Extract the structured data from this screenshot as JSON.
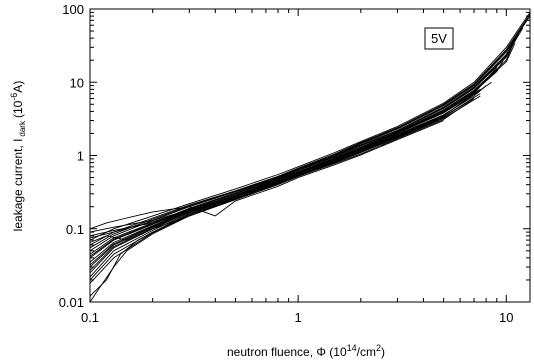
{
  "chart_data": {
    "type": "line",
    "title": "",
    "xlabel": "neutron fluence, Φ (10",
    "xlabel_sup": "14",
    "xlabel_mid": "/cm",
    "xlabel_sup2": "2",
    "xlabel_end": ")",
    "ylabel": "leakage current, I",
    "ylabel_sub": "dark",
    "ylabel_mid": "(10",
    "ylabel_sup": "-6",
    "ylabel_end": "A)",
    "xscale": "log",
    "yscale": "log",
    "xlim": [
      0.1,
      13
    ],
    "ylim": [
      0.01,
      100
    ],
    "x_ticks": [
      {
        "value": 0.1,
        "label": "0.1"
      },
      {
        "value": 1,
        "label": "1"
      },
      {
        "value": 10,
        "label": "10"
      }
    ],
    "y_ticks": [
      {
        "value": 0.01,
        "label": "0.01"
      },
      {
        "value": 0.1,
        "label": "0.1"
      },
      {
        "value": 1,
        "label": "1"
      },
      {
        "value": 10,
        "label": "10"
      },
      {
        "value": 100,
        "label": "100"
      }
    ],
    "grid": false,
    "annotation": {
      "text": "5V",
      "boxed": true,
      "position": "top-right"
    },
    "series_note": "approximately 30 individual device curves rising from ~0.02-0.1 at Φ=0.1 to ~0.5 at Φ=1 and ~8-90 near Φ=7-13",
    "series": [
      {
        "x": [
          0.1,
          0.13,
          0.2,
          0.3,
          0.5,
          0.8,
          1,
          1.5,
          2,
          3,
          5,
          7,
          10,
          13
        ],
        "y": [
          0.07,
          0.1,
          0.15,
          0.22,
          0.35,
          0.55,
          0.7,
          1.1,
          1.55,
          2.5,
          5.2,
          10,
          30,
          90
        ]
      },
      {
        "x": [
          0.1,
          0.13,
          0.2,
          0.3,
          0.5,
          0.8,
          1,
          1.5,
          2,
          3,
          5,
          7,
          10,
          13
        ],
        "y": [
          0.06,
          0.09,
          0.14,
          0.21,
          0.33,
          0.52,
          0.67,
          1.05,
          1.5,
          2.4,
          5,
          9.5,
          28,
          85
        ]
      },
      {
        "x": [
          0.1,
          0.13,
          0.2,
          0.3,
          0.5,
          0.8,
          1,
          1.5,
          2,
          3,
          5,
          7,
          10,
          12.5
        ],
        "y": [
          0.05,
          0.08,
          0.13,
          0.2,
          0.32,
          0.5,
          0.65,
          1,
          1.45,
          2.3,
          4.8,
          9,
          26,
          70
        ]
      },
      {
        "x": [
          0.1,
          0.13,
          0.2,
          0.3,
          0.5,
          0.8,
          1,
          1.5,
          2,
          3,
          5,
          7,
          10,
          12
        ],
        "y": [
          0.045,
          0.075,
          0.12,
          0.19,
          0.31,
          0.49,
          0.63,
          0.98,
          1.4,
          2.2,
          4.6,
          8.6,
          24,
          60
        ]
      },
      {
        "x": [
          0.1,
          0.13,
          0.2,
          0.3,
          0.5,
          0.8,
          1,
          1.5,
          2,
          3,
          5,
          7,
          10,
          11.5
        ],
        "y": [
          0.04,
          0.07,
          0.115,
          0.185,
          0.3,
          0.48,
          0.62,
          0.96,
          1.35,
          2.15,
          4.4,
          8.2,
          22,
          48
        ]
      },
      {
        "x": [
          0.1,
          0.13,
          0.2,
          0.3,
          0.5,
          0.8,
          1,
          1.5,
          2,
          3,
          5,
          7,
          10,
          11
        ],
        "y": [
          0.035,
          0.065,
          0.11,
          0.18,
          0.29,
          0.47,
          0.6,
          0.93,
          1.3,
          2.1,
          4.2,
          7.8,
          20,
          38
        ]
      },
      {
        "x": [
          0.1,
          0.13,
          0.2,
          0.3,
          0.5,
          0.8,
          1,
          1.5,
          2,
          3,
          5,
          7,
          9,
          10.5
        ],
        "y": [
          0.03,
          0.06,
          0.105,
          0.175,
          0.285,
          0.46,
          0.59,
          0.91,
          1.28,
          2.05,
          4,
          7.4,
          14,
          30
        ]
      },
      {
        "x": [
          0.1,
          0.13,
          0.2,
          0.3,
          0.5,
          0.8,
          1,
          1.5,
          2,
          3,
          5,
          7,
          9
        ],
        "y": [
          0.025,
          0.055,
          0.1,
          0.17,
          0.28,
          0.45,
          0.58,
          0.89,
          1.25,
          2,
          3.8,
          7,
          16
        ]
      },
      {
        "x": [
          0.1,
          0.13,
          0.2,
          0.3,
          0.5,
          0.8,
          1,
          1.5,
          2,
          3,
          5,
          7,
          8
        ],
        "y": [
          0.022,
          0.05,
          0.095,
          0.165,
          0.27,
          0.44,
          0.57,
          0.87,
          1.22,
          1.95,
          3.6,
          6.5,
          9
        ]
      },
      {
        "x": [
          0.1,
          0.13,
          0.2,
          0.3,
          0.5,
          0.8,
          1,
          1.5,
          2,
          3,
          5,
          7.5
        ],
        "y": [
          0.02,
          0.045,
          0.09,
          0.16,
          0.265,
          0.43,
          0.56,
          0.85,
          1.2,
          1.9,
          3.5,
          8
        ]
      },
      {
        "x": [
          0.1,
          0.13,
          0.2,
          0.3,
          0.5,
          0.8,
          1,
          1.5,
          2,
          3,
          5,
          7.5
        ],
        "y": [
          0.018,
          0.04,
          0.088,
          0.155,
          0.26,
          0.42,
          0.55,
          0.83,
          1.15,
          1.85,
          3.4,
          7
        ]
      },
      {
        "x": [
          0.1,
          0.13,
          0.2,
          0.3,
          0.5,
          0.8,
          1,
          1.5,
          2,
          3,
          5,
          7.5
        ],
        "y": [
          0.08,
          0.095,
          0.12,
          0.17,
          0.27,
          0.42,
          0.53,
          0.8,
          1.1,
          1.75,
          3.2,
          6.5
        ]
      },
      {
        "x": [
          0.1,
          0.12,
          0.15,
          0.2,
          0.3,
          0.5,
          0.8,
          1,
          1.5,
          2,
          3,
          5,
          7
        ],
        "y": [
          0.065,
          0.08,
          0.07,
          0.1,
          0.15,
          0.25,
          0.4,
          0.52,
          0.78,
          1.05,
          1.7,
          3.1,
          6
        ]
      },
      {
        "x": [
          0.1,
          0.12,
          0.15,
          0.2,
          0.3,
          0.4,
          0.5,
          0.8,
          1,
          1.5,
          2,
          3,
          5
        ],
        "y": [
          0.1,
          0.12,
          0.14,
          0.17,
          0.2,
          0.15,
          0.24,
          0.38,
          0.5,
          0.75,
          1.02,
          1.65,
          3
        ]
      },
      {
        "x": [
          0.1,
          0.12,
          0.14,
          0.17,
          0.2,
          0.3,
          0.5,
          0.8,
          1,
          1.5,
          2,
          3,
          5
        ],
        "y": [
          0.012,
          0.02,
          0.045,
          0.07,
          0.09,
          0.15,
          0.25,
          0.4,
          0.52,
          0.8,
          1.1,
          1.8,
          3.3
        ]
      },
      {
        "x": [
          0.1,
          0.11,
          0.13,
          0.15,
          0.2,
          0.3,
          0.5,
          0.8,
          1,
          1.5,
          2,
          3,
          5
        ],
        "y": [
          0.01,
          0.015,
          0.03,
          0.05,
          0.085,
          0.15,
          0.26,
          0.41,
          0.54,
          0.82,
          1.12,
          1.82,
          3.4
        ]
      },
      {
        "x": [
          0.1,
          0.13,
          0.2,
          0.3,
          0.5,
          0.8,
          1,
          1.5,
          2,
          3,
          5,
          7,
          10,
          13
        ],
        "y": [
          0.055,
          0.085,
          0.135,
          0.205,
          0.325,
          0.51,
          0.66,
          1.03,
          1.48,
          2.35,
          4.9,
          9.3,
          27,
          80
        ]
      },
      {
        "x": [
          0.1,
          0.13,
          0.2,
          0.3,
          0.5,
          0.8,
          1,
          1.5,
          2,
          3,
          5,
          7,
          10,
          12
        ],
        "y": [
          0.042,
          0.072,
          0.118,
          0.188,
          0.305,
          0.485,
          0.625,
          0.97,
          1.38,
          2.18,
          4.5,
          8.4,
          23,
          55
        ]
      },
      {
        "x": [
          0.1,
          0.13,
          0.2,
          0.3,
          0.5,
          0.8,
          1,
          1.5,
          2,
          3,
          5,
          7,
          10,
          11
        ],
        "y": [
          0.032,
          0.062,
          0.108,
          0.178,
          0.288,
          0.465,
          0.595,
          0.92,
          1.29,
          2.08,
          4.1,
          7.6,
          19,
          34
        ]
      },
      {
        "x": [
          0.1,
          0.13,
          0.2,
          0.3,
          0.5,
          0.8,
          1,
          1.5,
          2,
          3,
          5,
          7,
          9
        ],
        "y": [
          0.027,
          0.057,
          0.102,
          0.172,
          0.282,
          0.455,
          0.585,
          0.9,
          1.26,
          2.02,
          3.9,
          7.2,
          15
        ]
      },
      {
        "x": [
          0.1,
          0.13,
          0.2,
          0.3,
          0.5,
          0.8,
          1,
          1.5,
          2,
          3,
          5,
          7,
          8.5
        ],
        "y": [
          0.075,
          0.09,
          0.125,
          0.175,
          0.28,
          0.44,
          0.56,
          0.86,
          1.18,
          1.88,
          3.5,
          6.8,
          10
        ]
      },
      {
        "x": [
          0.1,
          0.13,
          0.2,
          0.3,
          0.5,
          0.8,
          1,
          1.5,
          2,
          3,
          5,
          7
        ],
        "y": [
          0.09,
          0.105,
          0.13,
          0.18,
          0.28,
          0.43,
          0.55,
          0.82,
          1.12,
          1.78,
          3.3,
          6.2
        ]
      }
    ]
  }
}
